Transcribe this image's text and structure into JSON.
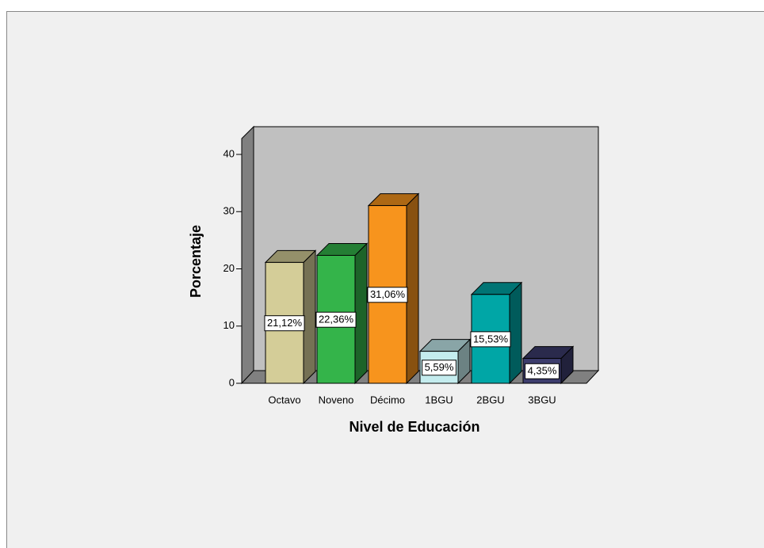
{
  "chart_data": {
    "type": "bar3d",
    "categories": [
      "Octavo",
      "Noveno",
      "Décimo",
      "1BGU",
      "2BGU",
      "3BGU"
    ],
    "values": [
      21.12,
      22.36,
      31.06,
      5.59,
      15.53,
      4.35
    ],
    "value_labels": [
      "21,12%",
      "22,36%",
      "31,06%",
      "5,59%",
      "15,53%",
      "4,35%"
    ],
    "colors": [
      "#d4cd98",
      "#34b44a",
      "#f7941d",
      "#c4ecee",
      "#00a6a6",
      "#3c3c6c"
    ],
    "ylim": [
      0,
      40
    ],
    "yticks": [
      0,
      10,
      20,
      30,
      40
    ],
    "y_label": "Porcentaje",
    "x_label": "Nivel de Educación"
  }
}
